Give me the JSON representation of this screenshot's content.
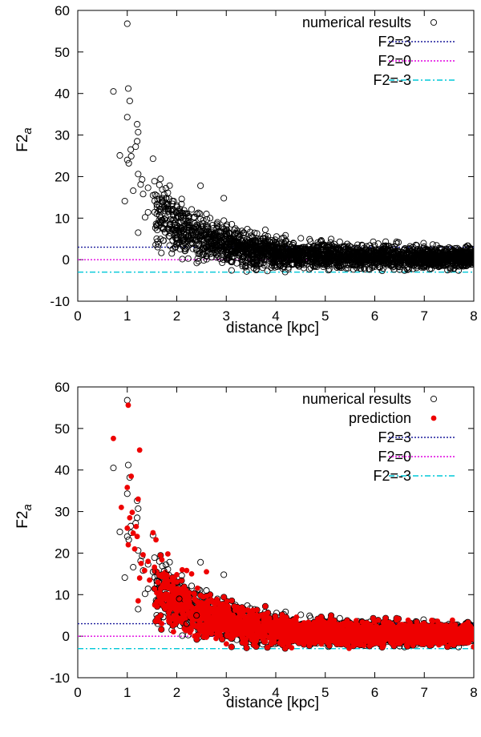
{
  "chart_data": [
    {
      "type": "scatter",
      "xlabel": "distance [kpc]",
      "ylabel": "F2",
      "ylabel_subscript": "a",
      "xlim": [
        0,
        8
      ],
      "ylim": [
        -10,
        60
      ],
      "x_ticks": [
        "0",
        "1",
        "2",
        "3",
        "4",
        "5",
        "6",
        "7",
        "8"
      ],
      "y_ticks": [
        "-10",
        "0",
        "10",
        "20",
        "30",
        "40",
        "50",
        "60"
      ],
      "legend_position": "top-right",
      "series": [
        {
          "name": "numerical results",
          "marker": "open-circle",
          "color": "#000000",
          "points": [
            [
              1.0,
              56.8
            ],
            [
              0.72,
              40.5
            ],
            [
              1.02,
              41.2
            ],
            [
              1.05,
              38.2
            ],
            [
              1.0,
              34.3
            ],
            [
              1.2,
              32.6
            ],
            [
              1.22,
              30.7
            ],
            [
              1.2,
              28.5
            ],
            [
              1.17,
              27.2
            ],
            [
              1.07,
              26.5
            ],
            [
              0.85,
              25.1
            ],
            [
              1.08,
              24.9
            ],
            [
              1.0,
              24.0
            ],
            [
              1.03,
              23.2
            ],
            [
              1.52,
              24.3
            ],
            [
              1.22,
              20.6
            ],
            [
              1.3,
              19.3
            ],
            [
              1.55,
              18.9
            ],
            [
              1.27,
              18.1
            ],
            [
              1.42,
              17.3
            ],
            [
              1.12,
              16.6
            ],
            [
              1.32,
              15.8
            ],
            [
              1.52,
              15.5
            ],
            [
              1.78,
              17.2
            ],
            [
              1.82,
              16.1
            ],
            [
              0.95,
              14.1
            ],
            [
              1.6,
              12.6
            ],
            [
              1.42,
              11.4
            ],
            [
              1.36,
              10.2
            ],
            [
              1.22,
              6.5
            ],
            [
              2.48,
              17.8
            ],
            [
              2.95,
              14.8
            ],
            [
              2.1,
              14.6
            ],
            [
              2.3,
              12.1
            ],
            [
              2.6,
              11.0
            ],
            [
              2.2,
              3.0
            ],
            [
              2.4,
              5.0
            ],
            [
              2.05,
              9.0
            ]
          ]
        },
        {
          "name": "F2=3",
          "type": "line",
          "y": 3,
          "style": "dotted",
          "color": "#1c1c9c"
        },
        {
          "name": "F2=0",
          "type": "line",
          "y": 0,
          "style": "dotted",
          "color": "#e000e0"
        },
        {
          "name": "F2=-3",
          "type": "line",
          "y": -3,
          "style": "dash-dot",
          "color": "#00c8d8"
        }
      ]
    },
    {
      "type": "scatter",
      "xlabel": "distance [kpc]",
      "ylabel": "F2",
      "ylabel_subscript": "a",
      "xlim": [
        0,
        8
      ],
      "ylim": [
        -10,
        60
      ],
      "x_ticks": [
        "0",
        "1",
        "2",
        "3",
        "4",
        "5",
        "6",
        "7",
        "8"
      ],
      "y_ticks": [
        "-10",
        "0",
        "10",
        "20",
        "30",
        "40",
        "50",
        "60"
      ],
      "legend_position": "top-right",
      "series": [
        {
          "name": "numerical results",
          "marker": "open-circle",
          "color": "#000000",
          "points": [
            [
              1.0,
              56.8
            ],
            [
              0.72,
              40.5
            ],
            [
              1.02,
              41.2
            ],
            [
              1.05,
              38.2
            ],
            [
              1.0,
              34.3
            ],
            [
              1.2,
              32.6
            ],
            [
              1.22,
              30.7
            ],
            [
              1.2,
              28.5
            ],
            [
              1.17,
              27.2
            ],
            [
              1.07,
              26.5
            ],
            [
              0.85,
              25.1
            ],
            [
              1.08,
              24.9
            ],
            [
              1.0,
              24.0
            ],
            [
              1.03,
              23.2
            ],
            [
              1.52,
              24.3
            ],
            [
              1.22,
              20.6
            ],
            [
              1.3,
              19.3
            ],
            [
              1.55,
              18.9
            ],
            [
              1.27,
              18.1
            ],
            [
              1.42,
              17.3
            ],
            [
              1.12,
              16.6
            ],
            [
              1.32,
              15.8
            ],
            [
              1.52,
              15.5
            ],
            [
              1.78,
              17.2
            ],
            [
              1.82,
              16.1
            ],
            [
              0.95,
              14.1
            ],
            [
              1.6,
              12.6
            ],
            [
              1.42,
              11.4
            ],
            [
              1.36,
              10.2
            ],
            [
              1.22,
              6.5
            ],
            [
              2.48,
              17.8
            ],
            [
              2.95,
              14.8
            ],
            [
              2.1,
              14.6
            ],
            [
              2.3,
              12.1
            ],
            [
              2.6,
              11.0
            ],
            [
              2.2,
              3.0
            ],
            [
              2.4,
              5.0
            ],
            [
              2.05,
              9.0
            ]
          ]
        },
        {
          "name": "prediction",
          "marker": "filled-circle",
          "color": "#ee0000",
          "points": [
            [
              1.02,
              55.6
            ],
            [
              0.72,
              47.6
            ],
            [
              1.25,
              44.8
            ],
            [
              1.08,
              38.5
            ],
            [
              1.0,
              35.8
            ],
            [
              0.88,
              31.0
            ],
            [
              1.22,
              33.0
            ],
            [
              1.1,
              29.8
            ],
            [
              1.05,
              28.5
            ],
            [
              1.18,
              26.4
            ],
            [
              1.0,
              26.0
            ],
            [
              1.12,
              24.8
            ],
            [
              1.2,
              24.0
            ],
            [
              1.52,
              24.9
            ],
            [
              1.58,
              23.2
            ],
            [
              1.02,
              22.0
            ],
            [
              1.15,
              21.0
            ],
            [
              1.32,
              19.6
            ],
            [
              1.42,
              18.0
            ],
            [
              1.7,
              18.4
            ],
            [
              1.82,
              19.8
            ],
            [
              1.28,
              17.5
            ],
            [
              1.55,
              16.6
            ],
            [
              1.35,
              15.8
            ],
            [
              2.2,
              15.8
            ],
            [
              2.3,
              15.0
            ],
            [
              1.25,
              14.0
            ],
            [
              1.45,
              13.5
            ],
            [
              1.62,
              13.0
            ],
            [
              1.22,
              8.5
            ],
            [
              2.0,
              14.8
            ],
            [
              2.6,
              15.5
            ]
          ]
        },
        {
          "name": "F2=3",
          "type": "line",
          "y": 3,
          "style": "dotted",
          "color": "#1c1c9c"
        },
        {
          "name": "F2=0",
          "type": "line",
          "y": 0,
          "style": "dotted",
          "color": "#e000e0"
        },
        {
          "name": "F2=-3",
          "type": "line",
          "y": -3,
          "style": "dash-dot",
          "color": "#00c8d8"
        }
      ]
    }
  ]
}
